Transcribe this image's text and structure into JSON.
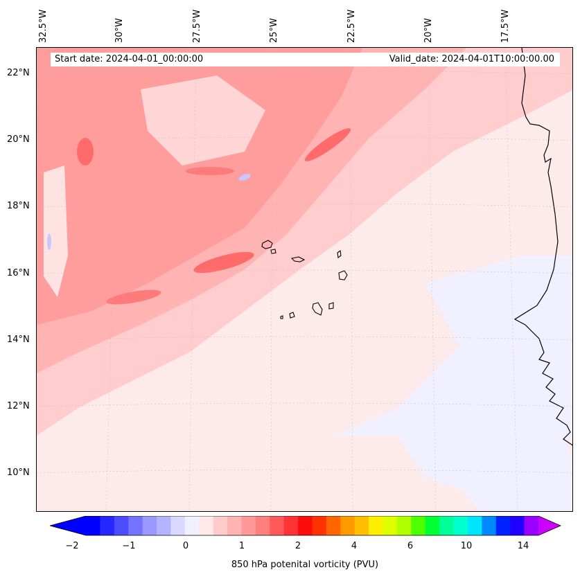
{
  "map": {
    "start_date": "Start date: 2024-04-01_00:00:00",
    "valid_date": "Valid_date: 2024-04-01T10:00:00.00",
    "lon_labels": [
      "32.5°W",
      "30°W",
      "27.5°W",
      "25°W",
      "22.5°W",
      "20°W",
      "17.5°W"
    ],
    "lat_labels": [
      "22°N",
      "20°N",
      "18°N",
      "16°N",
      "14°N",
      "12°N",
      "10°N"
    ]
  },
  "colorbar": {
    "title": "850 hPa potenital vorticity (PVU)",
    "ticks": [
      "−2",
      "−1",
      "0",
      "1",
      "2",
      "4",
      "6",
      "10",
      "14"
    ],
    "colors": [
      "#0000ff",
      "#2626ff",
      "#4c4cff",
      "#7373ff",
      "#9999ff",
      "#b3b3ff",
      "#d9d9ff",
      "#f0f0ff",
      "#ffe9e9",
      "#ffcccc",
      "#ffb3b3",
      "#ff9999",
      "#ff7f7f",
      "#ff5959",
      "#ff3333",
      "#ff0d0d",
      "#ff3300",
      "#ff6600",
      "#ff9900",
      "#ffbf00",
      "#ffee00",
      "#ddff00",
      "#b2ff00",
      "#4dff00",
      "#00ff33",
      "#00ff99",
      "#00ffcc",
      "#00e5ff",
      "#0088ff",
      "#0022ff",
      "#2200ff",
      "#9900ff"
    ],
    "min_color": "#0000ff",
    "max_color": "#cc00ff"
  },
  "palette": {
    "background": "#fdeaea",
    "light_pink": "#ffcdcd",
    "mid_pink": "#ffb3b3",
    "red": "#ff8e8e",
    "dark_red": "#ff6363",
    "pale_blue": "#eef0ff",
    "coastline": "#000000"
  }
}
